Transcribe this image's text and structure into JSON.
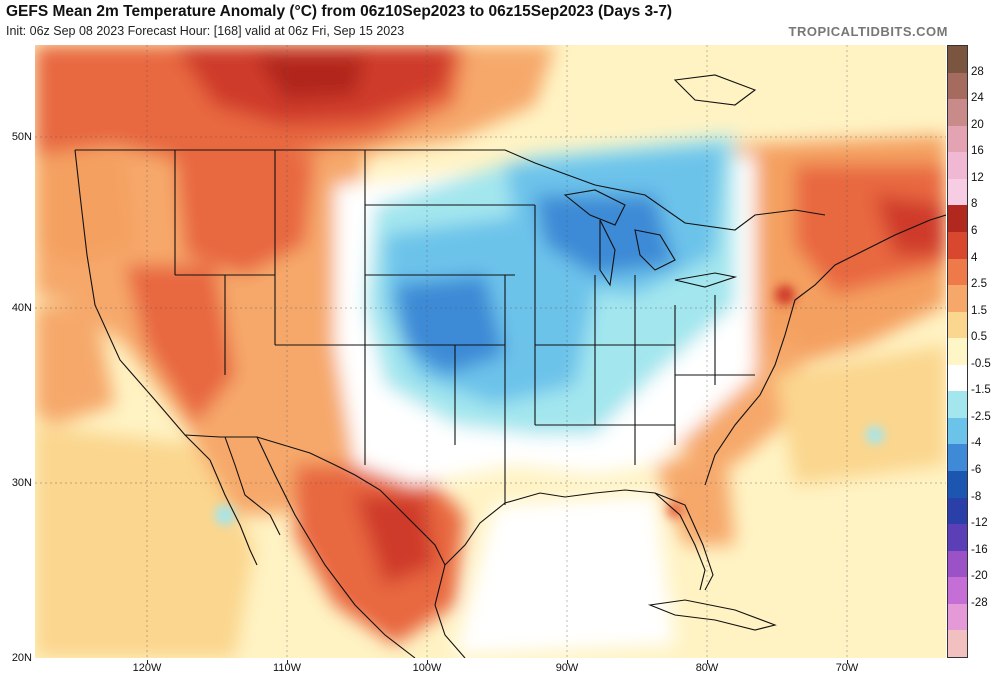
{
  "header": {
    "title": "GEFS Mean 2m Temperature Anomaly (°C) from 06z10Sep2023 to 06z15Sep2023 (Days 3-7)",
    "subtitle": "Init: 06z Sep 08 2023   Forecast Hour: [168]   valid at 06z Fri, Sep 15 2023",
    "brand": "TROPICALTIDBITS.COM"
  },
  "map": {
    "lat_labels": [
      "50N",
      "40N",
      "30N",
      "20N"
    ],
    "lon_labels": [
      "120W",
      "110W",
      "100W",
      "90W",
      "80W",
      "70W"
    ],
    "colors": {
      "ocean_neutral": "#fff3c4",
      "warm_light": "#fbd28a",
      "warm_mid": "#f4a060",
      "warm_strong": "#e8673f",
      "warm_max": "#cf3b2b",
      "cool_light": "#9fe3ee",
      "cool_mid": "#6cbfe8",
      "cool_strong": "#3d86d8",
      "near_zero": "#ffffff",
      "borders": "#111111"
    }
  },
  "colorbar": {
    "labels": [
      "28",
      "24",
      "20",
      "16",
      "12",
      "8",
      "6",
      "4",
      "2.5",
      "1.5",
      "0.5",
      "-0.5",
      "-1.5",
      "-2.5",
      "-4",
      "-6",
      "-8",
      "-12",
      "-16",
      "-20",
      "-28"
    ],
    "colors": [
      "#7a5540",
      "#a56b5e",
      "#c98a8a",
      "#e4a3b3",
      "#f0b8d2",
      "#f6cde2",
      "#b0281e",
      "#d9472f",
      "#ee7a4a",
      "#f6a86a",
      "#fbd68e",
      "#fff6c8",
      "#ffffff",
      "#a3e6ee",
      "#6cc3ea",
      "#3e8ad6",
      "#1d56b0",
      "#2a3fa8",
      "#5b3fb6",
      "#9a52c6",
      "#c56fd6",
      "#e59ad8",
      "#f2c0c0"
    ]
  }
}
